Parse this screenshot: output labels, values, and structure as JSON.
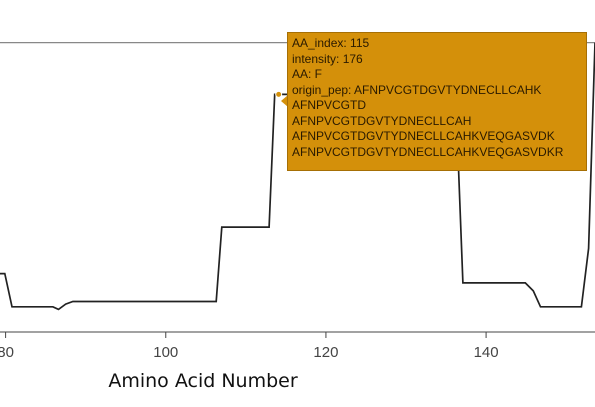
{
  "chart_data": {
    "type": "line",
    "xlabel": "Amino Acid Number",
    "ylabel": "",
    "xlim": [
      79.3,
      153.6
    ],
    "ylim": [
      -3,
      217
    ],
    "x_ticks": [
      80,
      100,
      120,
      140
    ],
    "series": [
      {
        "line_color": "#222222",
        "x": [
          79.3,
          79.9,
          80.8,
          85.9,
          86.6,
          87.5,
          88.4,
          106.3,
          107.0,
          112.9,
          113.6,
          115.0,
          136.2,
          137.1,
          144.9,
          145.9,
          146.8,
          151.9,
          152.8,
          153.6
        ],
        "y": [
          41,
          41,
          16,
          16,
          14,
          18,
          20,
          20,
          76,
          76,
          176,
          176,
          176,
          34,
          34,
          28,
          16,
          16,
          60,
          215
        ]
      }
    ],
    "reference_line_y": 215
  },
  "tooltip": {
    "lines": [
      "AA_index: 115",
      "intensity: 176",
      "AA: F",
      "origin_pep: AFNPVCGTDGVTYDNECLLCAHK",
      "AFNPVCGTD",
      "AFNPVCGTDGVTYDNECLLCAH",
      "AFNPVCGTDGVTYDNECLLCAHKVEQGASVDK",
      "AFNPVCGTDGVTYDNECLLCAHKVEQGASVDKR"
    ]
  }
}
